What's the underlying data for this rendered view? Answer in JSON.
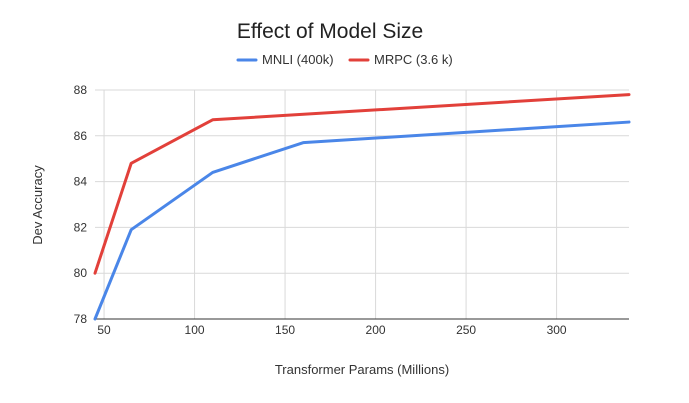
{
  "chart_data": {
    "type": "line",
    "title": "Effect of Model Size",
    "xlabel": "Transformer Params (Millions)",
    "ylabel": "Dev Accuracy",
    "xlim": [
      45,
      340
    ],
    "ylim": [
      78,
      88
    ],
    "x_ticks": [
      50,
      100,
      150,
      200,
      250,
      300
    ],
    "y_ticks": [
      78,
      80,
      82,
      84,
      86,
      88
    ],
    "grid": true,
    "legend_position": "top",
    "series": [
      {
        "name": "MNLI (400k)",
        "color": "#4a86e8",
        "x": [
          45,
          65,
          110,
          160,
          340
        ],
        "y": [
          78.0,
          81.9,
          84.4,
          85.7,
          86.6
        ]
      },
      {
        "name": "MRPC (3.6 k)",
        "color": "#e2403a",
        "x": [
          45,
          65,
          110,
          340
        ],
        "y": [
          80.0,
          84.8,
          86.7,
          87.8
        ]
      }
    ]
  }
}
